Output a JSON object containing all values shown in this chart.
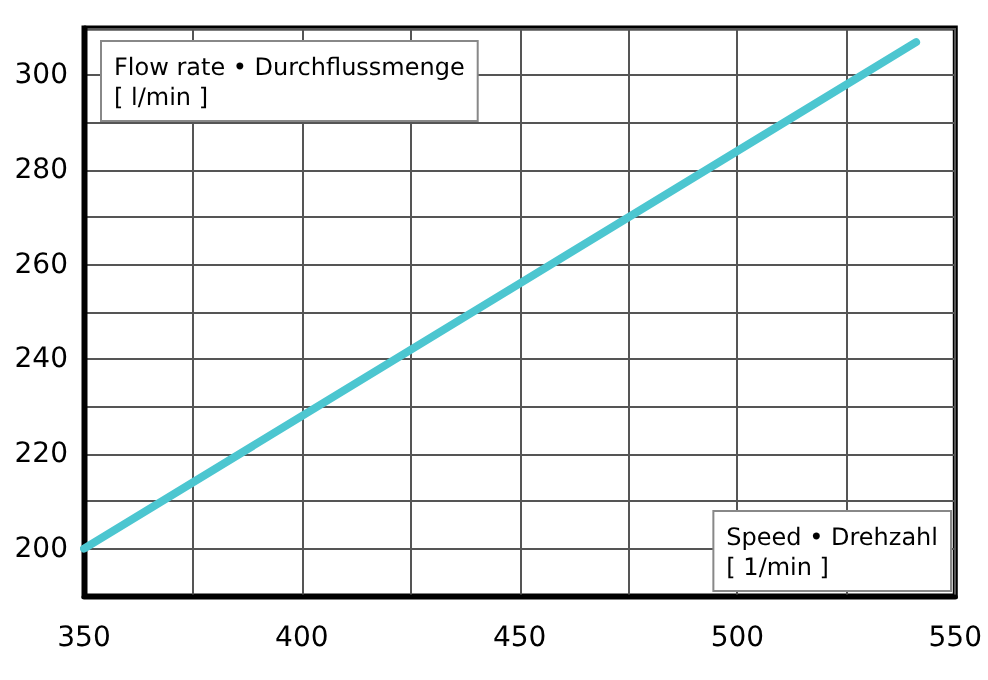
{
  "chart_data": {
    "type": "line",
    "xlabel": "Speed • Drehzahl\n[ 1/min ]",
    "ylabel": "Flow rate • Durchflussmenge\n[ l/min ]",
    "x": [
      350,
      541
    ],
    "series": [
      {
        "color": "#4cc6d0",
        "values": [
          200,
          307
        ]
      }
    ],
    "xlim": [
      350,
      550
    ],
    "ylim": [
      190,
      310
    ],
    "xticks": [
      350,
      {
        "value": 375,
        "label": null
      },
      400,
      {
        "value": 425,
        "label": null
      },
      450,
      {
        "value": 475,
        "label": null
      },
      500,
      {
        "value": 525,
        "label": null
      },
      550
    ],
    "yticks": [
      {
        "value": 190,
        "label": null
      },
      200,
      {
        "value": 210,
        "label": null
      },
      220,
      {
        "value": 230,
        "label": null
      },
      240,
      {
        "value": 250,
        "label": null
      },
      260,
      {
        "value": 270,
        "label": null
      },
      280,
      {
        "value": 290,
        "label": null
      },
      300,
      {
        "value": 310,
        "label": null
      }
    ],
    "grid": true,
    "marker": "none",
    "line_style": "solid"
  }
}
